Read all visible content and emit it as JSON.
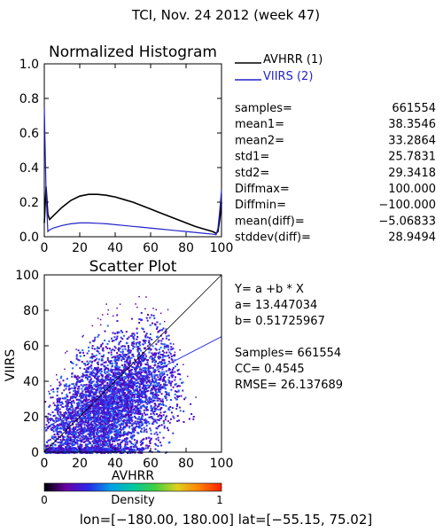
{
  "page": {
    "title": "TCI,  Nov. 24 2012 (week 47)",
    "footer": "lon=[−180.00, 180.00] lat=[−55.15, 75.02]"
  },
  "colors": {
    "avhrr_line": "#000000",
    "viirs_line": "#2222cc",
    "identity_line": "#000000",
    "fit_line": "#3333dd"
  },
  "histogram": {
    "title": "Normalized Histogram",
    "legend": [
      {
        "label": "AVHRR (1)",
        "color": "#000000"
      },
      {
        "label": "VIIRS (2)",
        "color": "#2222cc"
      }
    ],
    "stats": [
      {
        "label": "samples=",
        "value": "661554"
      },
      {
        "label": "mean1=",
        "value": "38.3546"
      },
      {
        "label": "mean2=",
        "value": "33.2864"
      },
      {
        "label": "std1=",
        "value": "25.7831"
      },
      {
        "label": "std2=",
        "value": "29.3418"
      },
      {
        "label": "Diffmax=",
        "value": "100.000"
      },
      {
        "label": "Diffmin=",
        "value": "−100.000"
      },
      {
        "label": "mean(diff)=",
        "value": "−5.06833"
      },
      {
        "label": "stddev(diff)=",
        "value": "28.9494"
      }
    ]
  },
  "scatter": {
    "title": "Scatter Plot",
    "regression": [
      "Y= a +b * X",
      "a= 13.447034",
      "b= 0.51725967"
    ],
    "summary": [
      "Samples= 661554",
      "CC=  0.4545",
      "RMSE= 26.137689"
    ],
    "colorbar": {
      "min_label": "0",
      "max_label": "1",
      "label": "Density",
      "stops": [
        "#000000",
        "#6a00a8",
        "#2a2ae8",
        "#00a0e8",
        "#00c8a0",
        "#40d040",
        "#e0d020",
        "#ff8000",
        "#ff2000"
      ]
    }
  },
  "chart_data": [
    {
      "type": "line",
      "name": "histogram",
      "title": "Normalized Histogram",
      "xlabel": "",
      "ylabel": "",
      "xlim": [
        0,
        100
      ],
      "ylim": [
        0,
        1.0
      ],
      "xticks": [
        0,
        20,
        40,
        60,
        80,
        100
      ],
      "yticks": [
        0.0,
        0.2,
        0.4,
        0.6,
        0.8,
        1.0
      ],
      "ytick_labels": [
        "0.0",
        "0.2",
        "0.4",
        "0.6",
        "0.8",
        "1.0"
      ],
      "x": [
        0,
        1,
        2,
        3,
        5,
        10,
        15,
        20,
        25,
        30,
        35,
        40,
        45,
        50,
        55,
        60,
        65,
        70,
        75,
        80,
        85,
        90,
        95,
        97,
        98,
        99,
        100
      ],
      "series": [
        {
          "name": "AVHRR (1)",
          "values": [
            0.08,
            0.29,
            0.13,
            0.1,
            0.12,
            0.17,
            0.21,
            0.235,
            0.245,
            0.245,
            0.24,
            0.23,
            0.215,
            0.2,
            0.18,
            0.16,
            0.14,
            0.12,
            0.1,
            0.08,
            0.06,
            0.045,
            0.03,
            0.02,
            0.03,
            0.1,
            0.2
          ]
        },
        {
          "name": "VIIRS (2)",
          "values": [
            0.75,
            0.26,
            0.03,
            0.04,
            0.05,
            0.065,
            0.075,
            0.08,
            0.08,
            0.078,
            0.075,
            0.07,
            0.065,
            0.06,
            0.055,
            0.05,
            0.045,
            0.04,
            0.035,
            0.03,
            0.025,
            0.02,
            0.015,
            0.012,
            0.05,
            0.15,
            0.27
          ]
        }
      ]
    },
    {
      "type": "scatter",
      "name": "scatter",
      "title": "Scatter Plot",
      "xlabel": "AVHRR",
      "ylabel": "VIIRS",
      "xlim": [
        0,
        100
      ],
      "ylim": [
        0,
        100
      ],
      "xticks": [
        0,
        20,
        40,
        60,
        80,
        100
      ],
      "yticks": [
        0,
        20,
        40,
        60,
        80,
        100
      ],
      "lines": [
        {
          "name": "identity",
          "intercept": 0,
          "slope": 1
        },
        {
          "name": "fit",
          "intercept": 13.447034,
          "slope": 0.51725967
        }
      ],
      "density_cloud": {
        "points": 661554,
        "x_range": [
          0,
          100
        ],
        "y_range": [
          0,
          100
        ],
        "core_center": [
          30,
          20
        ],
        "upper_envelope": [
          [
            0,
            30
          ],
          [
            20,
            60
          ],
          [
            40,
            78
          ],
          [
            60,
            80
          ],
          [
            70,
            68
          ],
          [
            75,
            50
          ],
          [
            80,
            35
          ],
          [
            85,
            20
          ],
          [
            90,
            5
          ]
        ]
      }
    }
  ]
}
